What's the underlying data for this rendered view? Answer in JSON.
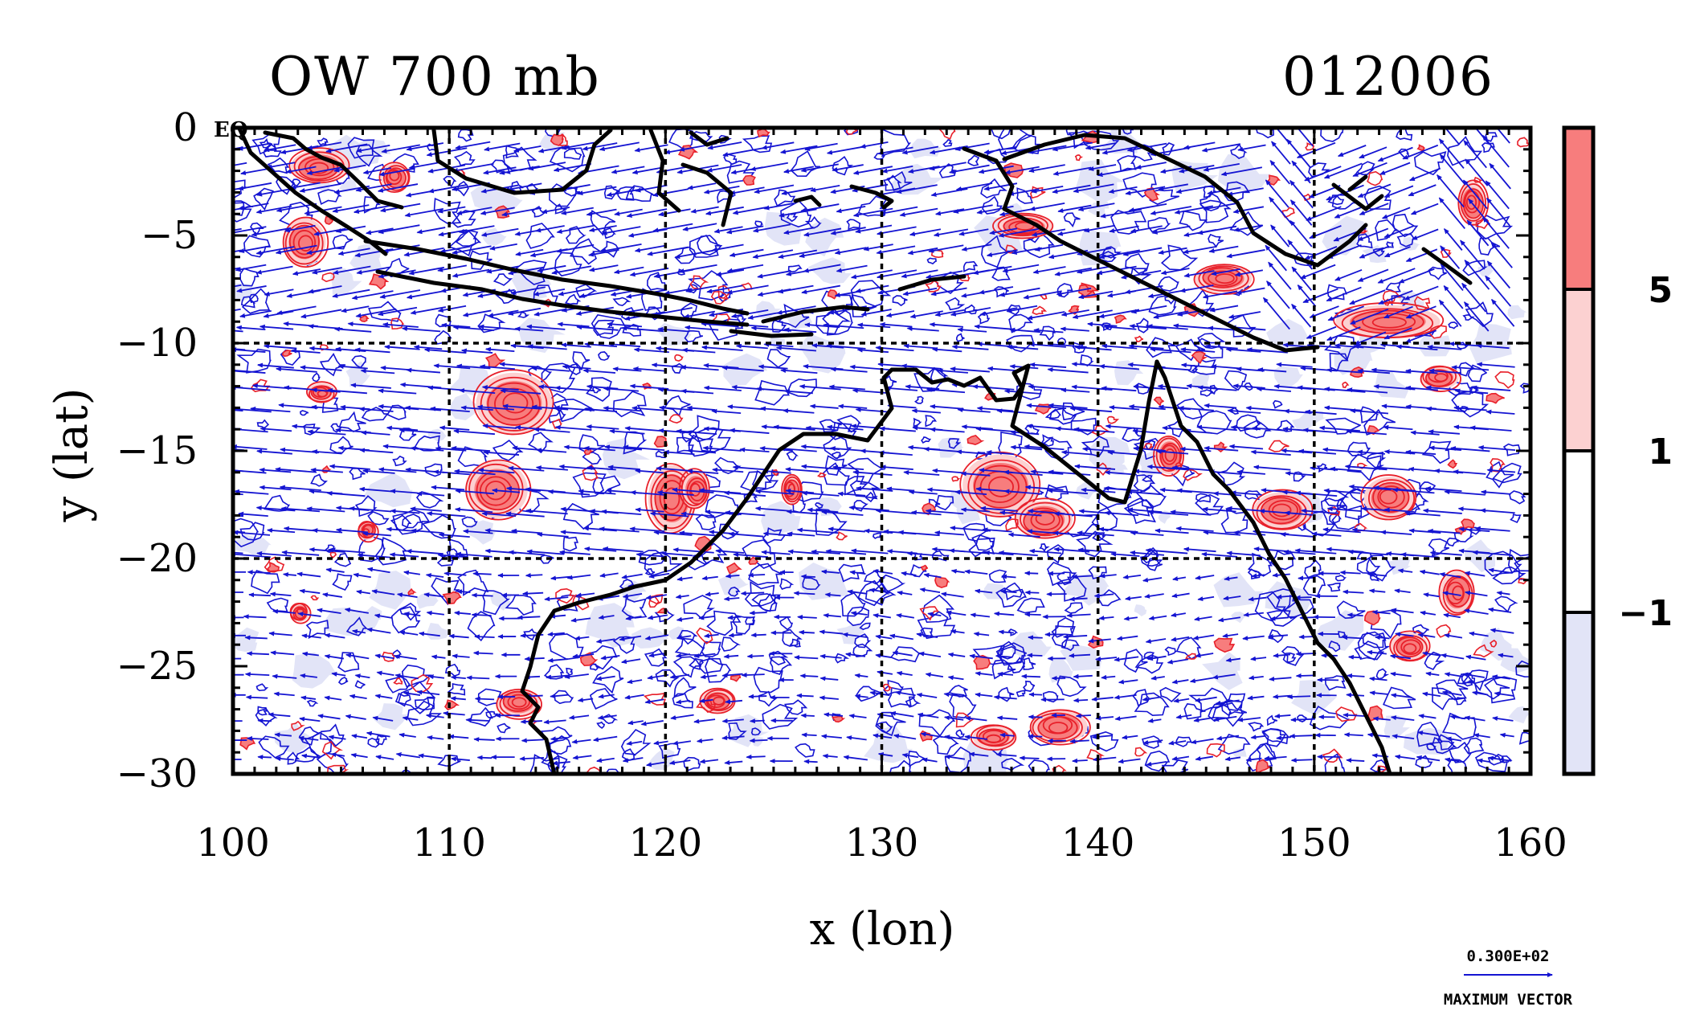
{
  "chart_data": {
    "type": "contour",
    "title": "OW 700 mb",
    "timestamp": "012006",
    "xlabel": "x (lon)",
    "ylabel": "y (lat)",
    "xlim": [
      100,
      160
    ],
    "ylim": [
      -30,
      0
    ],
    "x_ticks": [
      100,
      110,
      120,
      130,
      140,
      150,
      160
    ],
    "y_ticks": [
      0,
      -5,
      -10,
      -15,
      -20,
      -25,
      -30
    ],
    "x_tick_labels": [
      "100",
      "110",
      "120",
      "130",
      "140",
      "150",
      "160"
    ],
    "y_tick_labels": [
      "0",
      "−5",
      "−10",
      "−15",
      "−20",
      "−25",
      "−30"
    ],
    "equator_label": "EQ",
    "grid": true,
    "grid_x": [
      110,
      120,
      130,
      140,
      150
    ],
    "grid_y": [
      -10,
      -20
    ],
    "colorbar": {
      "levels": [
        -1,
        1,
        5
      ],
      "labels": [
        "−1",
        "1",
        "5"
      ],
      "colors": [
        "#e2e4f7",
        "#ffffff",
        "#fcd1d1",
        "#f77d7d"
      ]
    },
    "colors": {
      "positive_contour": "#e8202a",
      "negative_contour": "#1414d2",
      "vectors": "#1414d2",
      "coast": "#000000",
      "strong_positive_fill": "#f77d7d",
      "weak_positive_fill": "#fcd1d1",
      "negative_fill": "#e2e4f7"
    },
    "vector_legend": {
      "value": "0.300E+02",
      "label": "MAXIMUM VECTOR"
    },
    "positive_centers": [
      {
        "lon": 104,
        "lat": -1.8,
        "rx": 1.2,
        "ry": 0.7
      },
      {
        "lon": 103.3,
        "lat": -5.3,
        "rx": 0.9,
        "ry": 1.0
      },
      {
        "lon": 107.5,
        "lat": -2.3,
        "rx": 0.6,
        "ry": 0.6
      },
      {
        "lon": 113,
        "lat": -12.8,
        "rx": 1.6,
        "ry": 1.3
      },
      {
        "lon": 112.2,
        "lat": -16.8,
        "rx": 1.3,
        "ry": 1.2
      },
      {
        "lon": 106.2,
        "lat": -18.7,
        "rx": 0.4,
        "ry": 0.4
      },
      {
        "lon": 104.1,
        "lat": -12.3,
        "rx": 0.6,
        "ry": 0.4
      },
      {
        "lon": 103.1,
        "lat": -22.5,
        "rx": 0.4,
        "ry": 0.4
      },
      {
        "lon": 113.2,
        "lat": -26.7,
        "rx": 0.9,
        "ry": 0.6
      },
      {
        "lon": 120.3,
        "lat": -17.2,
        "rx": 1.0,
        "ry": 1.4
      },
      {
        "lon": 122.4,
        "lat": -26.6,
        "rx": 0.7,
        "ry": 0.5
      },
      {
        "lon": 121.4,
        "lat": -16.8,
        "rx": 0.6,
        "ry": 0.8
      },
      {
        "lon": 125.8,
        "lat": -16.8,
        "rx": 0.4,
        "ry": 0.6
      },
      {
        "lon": 135.5,
        "lat": -16.6,
        "rx": 1.6,
        "ry": 1.3
      },
      {
        "lon": 137.5,
        "lat": -18.2,
        "rx": 1.2,
        "ry": 0.8
      },
      {
        "lon": 138.2,
        "lat": -27.8,
        "rx": 1.2,
        "ry": 0.7
      },
      {
        "lon": 135.2,
        "lat": -28.3,
        "rx": 0.9,
        "ry": 0.5
      },
      {
        "lon": 143.3,
        "lat": -15.2,
        "rx": 0.6,
        "ry": 0.8
      },
      {
        "lon": 148.5,
        "lat": -17.8,
        "rx": 1.2,
        "ry": 0.8
      },
      {
        "lon": 153.5,
        "lat": -17.2,
        "rx": 1.1,
        "ry": 0.9
      },
      {
        "lon": 145.8,
        "lat": -7,
        "rx": 1.2,
        "ry": 0.6
      },
      {
        "lon": 153.4,
        "lat": -9,
        "rx": 2.2,
        "ry": 0.7
      },
      {
        "lon": 156.6,
        "lat": -21.6,
        "rx": 0.7,
        "ry": 0.9
      },
      {
        "lon": 154.4,
        "lat": -24.1,
        "rx": 0.8,
        "ry": 0.6
      },
      {
        "lon": 136.6,
        "lat": -4.6,
        "rx": 1.2,
        "ry": 0.5
      },
      {
        "lon": 155.8,
        "lat": -11.6,
        "rx": 0.8,
        "ry": 0.5
      },
      {
        "lon": 157.3,
        "lat": -3.5,
        "rx": 0.6,
        "ry": 0.9
      }
    ]
  }
}
